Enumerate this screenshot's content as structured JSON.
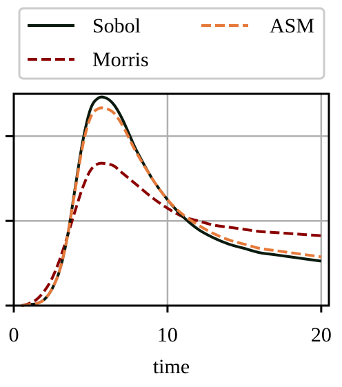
{
  "chart_data": {
    "type": "line",
    "xlabel": "time",
    "ylabel": "",
    "xlim": [
      0,
      20.5
    ],
    "ylim": [
      0,
      1.0
    ],
    "x_ticks": [
      0,
      10,
      20
    ],
    "x_tick_labels": [
      "0",
      "10",
      "20"
    ],
    "y_ticks": [
      0,
      0.4,
      0.8
    ],
    "y_tick_labels": [
      "",
      "",
      ""
    ],
    "grid": true,
    "legend_placement": "top (outside, above plot)",
    "series": [
      {
        "name": "Sobol",
        "color": "#0b1a0e",
        "dash": "solid",
        "x": [
          0.5,
          1,
          1.5,
          2,
          2.5,
          3,
          3.5,
          4,
          4.5,
          5,
          5.5,
          6,
          6.5,
          7,
          7.5,
          8,
          9,
          10,
          11,
          12,
          13,
          14,
          15,
          16,
          17,
          18,
          19,
          20
        ],
        "values": [
          0.0,
          0.005,
          0.01,
          0.03,
          0.08,
          0.17,
          0.33,
          0.56,
          0.78,
          0.93,
          0.98,
          0.98,
          0.95,
          0.89,
          0.81,
          0.73,
          0.6,
          0.5,
          0.42,
          0.36,
          0.32,
          0.29,
          0.27,
          0.25,
          0.24,
          0.23,
          0.22,
          0.21
        ]
      },
      {
        "name": "Morris",
        "color": "#8b0000",
        "dash": "dashed",
        "x": [
          0.5,
          1,
          1.5,
          2,
          2.5,
          3,
          3.5,
          4,
          4.5,
          5,
          5.5,
          6,
          6.5,
          7,
          7.5,
          8,
          9,
          10,
          11,
          12,
          13,
          14,
          15,
          16,
          17,
          18,
          19,
          20
        ],
        "values": [
          0.0,
          0.01,
          0.03,
          0.07,
          0.13,
          0.22,
          0.33,
          0.45,
          0.56,
          0.64,
          0.67,
          0.67,
          0.66,
          0.63,
          0.6,
          0.57,
          0.51,
          0.46,
          0.42,
          0.4,
          0.38,
          0.37,
          0.36,
          0.35,
          0.345,
          0.34,
          0.335,
          0.33
        ]
      },
      {
        "name": "ASM",
        "color": "#e67a3a",
        "dash": "dashed",
        "x": [
          0.5,
          1,
          1.5,
          2,
          2.5,
          3,
          3.5,
          4,
          4.5,
          5,
          5.5,
          6,
          6.5,
          7,
          7.5,
          8,
          9,
          10,
          11,
          12,
          13,
          14,
          15,
          16,
          17,
          18,
          19,
          20
        ],
        "values": [
          0.0,
          0.005,
          0.01,
          0.03,
          0.08,
          0.17,
          0.33,
          0.55,
          0.76,
          0.89,
          0.93,
          0.93,
          0.91,
          0.86,
          0.79,
          0.72,
          0.6,
          0.5,
          0.43,
          0.38,
          0.34,
          0.31,
          0.29,
          0.27,
          0.26,
          0.25,
          0.24,
          0.23
        ]
      }
    ]
  }
}
